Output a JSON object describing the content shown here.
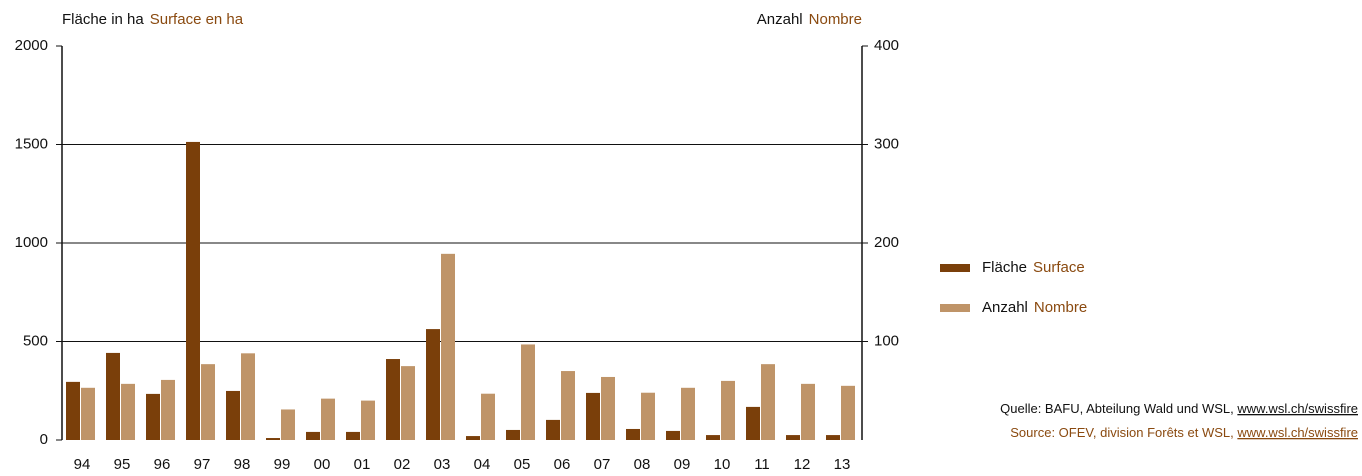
{
  "chart_data": {
    "type": "bar",
    "ylabel": {
      "de": "Fläche in ha",
      "fr": "Surface en ha"
    },
    "y2label": {
      "de": "Anzahl",
      "fr": "Nombre"
    },
    "categories": [
      "94",
      "95",
      "96",
      "97",
      "98",
      "99",
      "00",
      "01",
      "02",
      "03",
      "04",
      "05",
      "06",
      "07",
      "08",
      "09",
      "10",
      "11",
      "12",
      "13"
    ],
    "series": [
      {
        "name": "Fläche",
        "name_fr": "Surface",
        "color": "#7a3f0a",
        "axis": "y",
        "values": [
          295,
          442,
          234,
          1513,
          249,
          10,
          41,
          41,
          411,
          563,
          20,
          51,
          102,
          239,
          56,
          46,
          25,
          168,
          25,
          25
        ]
      },
      {
        "name": "Anzahl",
        "name_fr": "Nombre",
        "color": "#bf9468",
        "axis": "y2",
        "values": [
          53,
          57,
          61,
          77,
          88,
          31,
          42,
          40,
          75,
          189,
          47,
          97,
          70,
          64,
          48,
          53,
          60,
          77,
          57,
          55
        ]
      }
    ],
    "ylim": [
      0,
      2000
    ],
    "yticks": [
      0,
      500,
      1000,
      1500,
      2000
    ],
    "y2lim": [
      0,
      400
    ],
    "y2ticks": [
      100,
      200,
      300,
      400
    ],
    "grid": true,
    "source": {
      "de": "Quelle: BAFU, Abteilung Wald und WSL, ",
      "de_link": "www.wsl.ch/swissfire",
      "fr": "Source: OFEV, division Forêts et WSL, ",
      "fr_link": "www.wsl.ch/swissfire"
    }
  }
}
